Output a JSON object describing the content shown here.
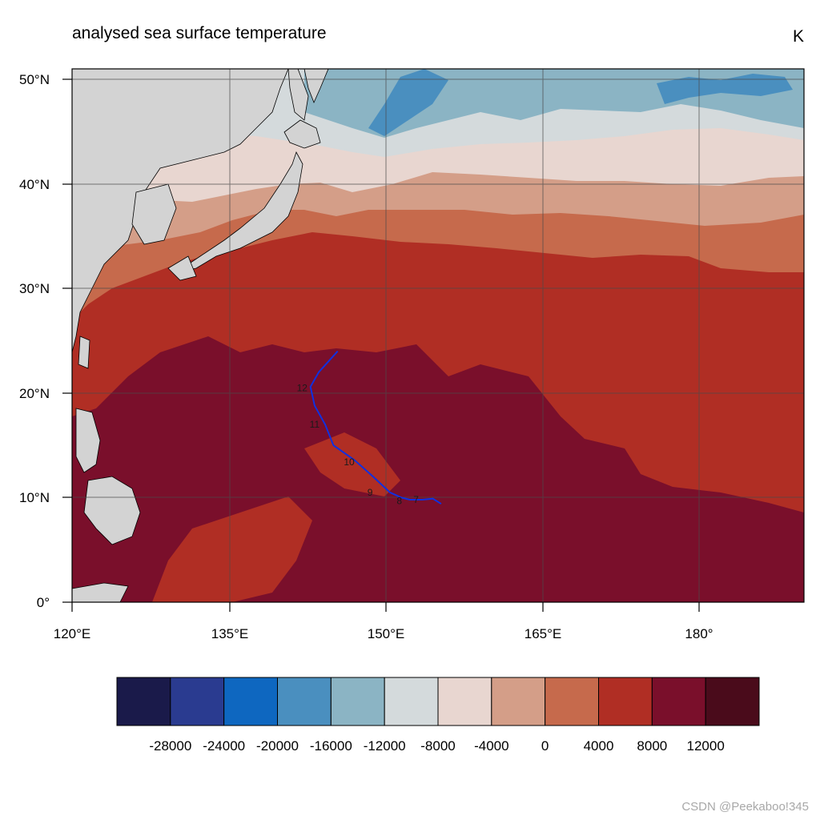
{
  "title": "analysed sea surface temperature",
  "units": "K",
  "watermark": "CSDN @Peekaboo!345",
  "map": {
    "projection": "cylindrical equidistant",
    "lon_range": [
      120,
      190
    ],
    "lat_range": [
      0,
      51
    ],
    "lon_ticks": [
      "120°E",
      "135°E",
      "150°E",
      "165°E",
      "180°"
    ],
    "lat_ticks": [
      "0°",
      "10°N",
      "20°N",
      "30°N",
      "40°N",
      "50°N"
    ],
    "grid": true,
    "land_color": "#d3d3d3"
  },
  "colorbar": {
    "colors": [
      "#1a1a4a",
      "#2a3b90",
      "#0e67c0",
      "#4a8fbf",
      "#8bb4c4",
      "#d4dadc",
      "#e8d6d0",
      "#d49e88",
      "#c66a4c",
      "#b02e24",
      "#7a0f2b",
      "#4a0b1b"
    ],
    "labels": [
      "-28000",
      "-24000",
      "-20000",
      "-16000",
      "-12000",
      "-8000",
      "-4000",
      "0",
      "4000",
      "8000",
      "12000"
    ]
  },
  "storm_track": {
    "color": "#1030e0",
    "path": [
      [
        155.3,
        9.4
      ],
      [
        154.5,
        9.9
      ],
      [
        153.5,
        9.8
      ],
      [
        152.3,
        9.8
      ],
      [
        151.5,
        10.0
      ],
      [
        150.4,
        10.5
      ],
      [
        148.8,
        12.0
      ],
      [
        147.0,
        13.6
      ],
      [
        145.0,
        15.0
      ],
      [
        144.2,
        17.0
      ],
      [
        143.2,
        18.8
      ],
      [
        142.8,
        20.6
      ],
      [
        143.6,
        22.0
      ],
      [
        145.4,
        24.0
      ]
    ],
    "labels": [
      {
        "text": "7",
        "lon": 152.9,
        "lat": 9.8
      },
      {
        "text": "8",
        "lon": 151.3,
        "lat": 9.7
      },
      {
        "text": "9",
        "lon": 148.5,
        "lat": 10.5
      },
      {
        "text": "10",
        "lon": 146.5,
        "lat": 13.4
      },
      {
        "text": "11",
        "lon": 143.2,
        "lat": 17.0
      },
      {
        "text": "12",
        "lon": 142.0,
        "lat": 20.5
      }
    ]
  }
}
